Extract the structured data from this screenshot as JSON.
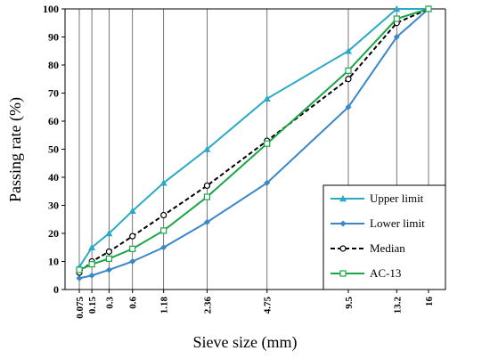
{
  "chart_data": {
    "type": "line",
    "xlabel": "Sieve size (mm)",
    "ylabel": "Passing rate (%)",
    "x_scale": "power-0.45",
    "x_ticks": [
      "0.075",
      "0.15",
      "0.3",
      "0.6",
      "1.18",
      "2.36",
      "4.75",
      "9.5",
      "13.2",
      "16"
    ],
    "x_tick_values": [
      0.075,
      0.15,
      0.3,
      0.6,
      1.18,
      2.36,
      4.75,
      9.5,
      13.2,
      16
    ],
    "ylim": [
      0,
      100
    ],
    "y_ticks": [
      "0",
      "10",
      "20",
      "30",
      "40",
      "50",
      "60",
      "70",
      "80",
      "90",
      "100"
    ],
    "grid_vertical": true,
    "legend_position": "bottom-right",
    "series": [
      {
        "name": "Upper limit",
        "color": "#2aa9c6",
        "marker": "triangle",
        "dash": "solid",
        "x": [
          0.075,
          0.15,
          0.3,
          0.6,
          1.18,
          2.36,
          4.75,
          9.5,
          13.2,
          16
        ],
        "values": [
          8,
          15,
          20,
          28,
          38,
          50,
          68,
          85,
          100,
          100
        ]
      },
      {
        "name": "Lower limit",
        "color": "#3a86c8",
        "marker": "diamond",
        "dash": "solid",
        "x": [
          0.075,
          0.15,
          0.3,
          0.6,
          1.18,
          2.36,
          4.75,
          9.5,
          13.2,
          16
        ],
        "values": [
          4,
          5,
          7,
          10,
          15,
          24,
          38,
          65,
          90,
          100
        ]
      },
      {
        "name": "Median",
        "color": "#000000",
        "marker": "circle-open",
        "dash": "dashed",
        "x": [
          0.075,
          0.15,
          0.3,
          0.6,
          1.18,
          2.36,
          4.75,
          9.5,
          13.2,
          16
        ],
        "values": [
          6,
          10,
          13.5,
          19,
          26.5,
          37,
          53,
          75,
          95,
          100
        ]
      },
      {
        "name": "AC-13",
        "color": "#1aa646",
        "marker": "square-open",
        "dash": "solid",
        "x": [
          0.075,
          0.15,
          0.3,
          0.6,
          1.18,
          2.36,
          4.75,
          9.5,
          13.2,
          16
        ],
        "values": [
          7,
          9,
          11,
          14.5,
          21,
          33,
          52,
          78,
          96.5,
          100
        ]
      }
    ]
  }
}
